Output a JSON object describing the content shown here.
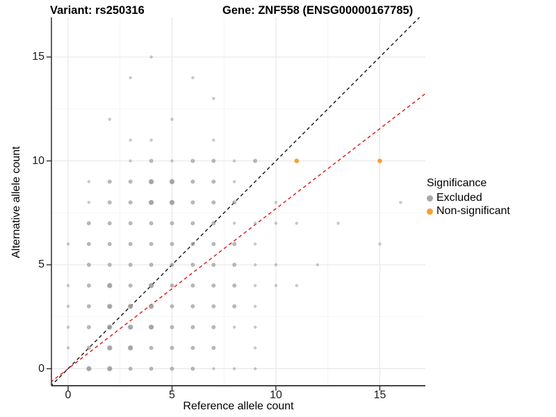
{
  "chart_data": {
    "type": "scatter",
    "title_left": "Variant: rs250316",
    "title_right": "Gene: ZNF558 (ENSG00000167785)",
    "xlabel": "Reference allele count",
    "ylabel": "Alternative allele count",
    "xlim": [
      -0.85,
      17.2
    ],
    "ylim": [
      -0.85,
      16.9
    ],
    "x_major_ticks": [
      0,
      5,
      10,
      15
    ],
    "x_minor_ticks": [
      2.5,
      7.5,
      12.5
    ],
    "y_major_ticks": [
      0,
      5,
      10,
      15
    ],
    "y_minor_ticks": [
      2.5,
      7.5,
      12.5
    ],
    "grid": "major and minor, light gray on white panel",
    "legend_title": "Significance",
    "legend_position": "right",
    "size_note": "points drawn as [x, y, sizeTier]; tier 1 = small/faint, 2 = medium, 3 = large/darker",
    "series": [
      {
        "name": "Excluded",
        "color": "#969696",
        "points": [
          [
            1,
            0,
            3
          ],
          [
            2,
            0,
            3
          ],
          [
            3,
            0,
            2
          ],
          [
            4,
            0,
            2
          ],
          [
            5,
            0,
            2
          ],
          [
            6,
            0,
            2
          ],
          [
            7,
            0,
            1
          ],
          [
            8,
            0,
            1
          ],
          [
            9,
            0,
            1
          ],
          [
            0,
            1,
            1
          ],
          [
            1,
            1,
            2
          ],
          [
            2,
            1,
            3
          ],
          [
            3,
            1,
            3
          ],
          [
            4,
            1,
            2
          ],
          [
            5,
            1,
            2
          ],
          [
            6,
            1,
            2
          ],
          [
            7,
            1,
            2
          ],
          [
            9,
            1,
            1
          ],
          [
            0,
            2,
            1
          ],
          [
            1,
            2,
            2
          ],
          [
            2,
            2,
            3
          ],
          [
            3,
            2,
            3
          ],
          [
            4,
            2,
            3
          ],
          [
            5,
            2,
            2
          ],
          [
            6,
            2,
            2
          ],
          [
            7,
            2,
            2
          ],
          [
            8,
            2,
            1
          ],
          [
            9,
            2,
            1
          ],
          [
            0,
            3,
            1
          ],
          [
            1,
            3,
            2
          ],
          [
            2,
            3,
            3
          ],
          [
            3,
            3,
            3
          ],
          [
            4,
            3,
            3
          ],
          [
            5,
            3,
            2
          ],
          [
            6,
            3,
            2
          ],
          [
            7,
            3,
            2
          ],
          [
            8,
            3,
            2
          ],
          [
            9,
            3,
            1
          ],
          [
            0,
            4,
            1
          ],
          [
            1,
            4,
            2
          ],
          [
            2,
            4,
            3
          ],
          [
            3,
            4,
            2
          ],
          [
            4,
            4,
            3
          ],
          [
            5,
            4,
            2
          ],
          [
            6,
            4,
            2
          ],
          [
            7,
            4,
            2
          ],
          [
            8,
            4,
            2
          ],
          [
            9,
            4,
            1
          ],
          [
            10,
            4,
            1
          ],
          [
            11,
            4,
            1
          ],
          [
            1,
            5,
            2
          ],
          [
            2,
            5,
            2
          ],
          [
            3,
            5,
            2
          ],
          [
            4,
            5,
            2
          ],
          [
            5,
            5,
            2
          ],
          [
            6,
            5,
            2
          ],
          [
            7,
            5,
            2
          ],
          [
            8,
            5,
            2
          ],
          [
            9,
            5,
            1
          ],
          [
            10,
            5,
            1
          ],
          [
            12,
            5,
            1
          ],
          [
            0,
            6,
            1
          ],
          [
            1,
            6,
            2
          ],
          [
            2,
            6,
            2
          ],
          [
            3,
            6,
            2
          ],
          [
            4,
            6,
            2
          ],
          [
            5,
            6,
            2
          ],
          [
            6,
            6,
            2
          ],
          [
            7,
            6,
            2
          ],
          [
            8,
            6,
            2
          ],
          [
            9,
            6,
            1
          ],
          [
            15,
            6,
            1
          ],
          [
            1,
            7,
            2
          ],
          [
            2,
            7,
            2
          ],
          [
            3,
            7,
            2
          ],
          [
            4,
            7,
            2
          ],
          [
            5,
            7,
            2
          ],
          [
            6,
            7,
            2
          ],
          [
            7,
            7,
            2
          ],
          [
            8,
            7,
            1
          ],
          [
            9,
            7,
            1
          ],
          [
            10,
            7,
            1
          ],
          [
            11,
            7,
            1
          ],
          [
            13,
            7,
            1
          ],
          [
            1,
            8,
            1
          ],
          [
            2,
            8,
            2
          ],
          [
            3,
            8,
            2
          ],
          [
            4,
            8,
            3
          ],
          [
            5,
            8,
            3
          ],
          [
            6,
            8,
            2
          ],
          [
            7,
            8,
            2
          ],
          [
            8,
            8,
            2
          ],
          [
            10,
            8,
            1
          ],
          [
            16,
            8,
            1
          ],
          [
            1,
            9,
            1
          ],
          [
            2,
            9,
            2
          ],
          [
            3,
            9,
            2
          ],
          [
            4,
            9,
            3
          ],
          [
            5,
            9,
            3
          ],
          [
            6,
            9,
            2
          ],
          [
            7,
            9,
            2
          ],
          [
            8,
            9,
            1
          ],
          [
            3,
            10,
            1
          ],
          [
            4,
            10,
            2
          ],
          [
            5,
            10,
            1
          ],
          [
            6,
            10,
            2
          ],
          [
            7,
            10,
            2
          ],
          [
            8,
            10,
            1
          ],
          [
            9,
            10,
            2
          ],
          [
            3,
            11,
            1
          ],
          [
            4,
            11,
            1
          ],
          [
            7,
            11,
            1
          ],
          [
            2,
            12,
            1
          ],
          [
            5,
            12,
            1
          ],
          [
            7,
            13,
            1
          ],
          [
            3,
            14,
            1
          ],
          [
            6,
            14,
            1
          ],
          [
            4,
            15,
            1
          ]
        ]
      },
      {
        "name": "Non-significant",
        "color": "#f8a032",
        "points": [
          [
            11,
            10,
            2
          ],
          [
            15,
            10,
            2
          ]
        ]
      }
    ],
    "reference_lines": [
      {
        "name": "identity-line",
        "slope": 1,
        "intercept": 0,
        "color": "#222222",
        "style": "dashed"
      },
      {
        "name": "fitted-ratio-line",
        "slope": 0.77,
        "intercept": 0,
        "color": "#e02020",
        "style": "dashed"
      }
    ]
  },
  "legend": {
    "title": "Significance",
    "items": [
      {
        "label": "Excluded",
        "color": "#a8a8a8"
      },
      {
        "label": "Non-significant",
        "color": "#f8a032"
      }
    ]
  },
  "theme": {
    "panel_bg": "#ffffff",
    "grid_major": "#e5e5e5",
    "grid_minor": "#f2f2f2",
    "axis_line": "#2b2b2b",
    "tick_color": "#2b2b2b"
  }
}
